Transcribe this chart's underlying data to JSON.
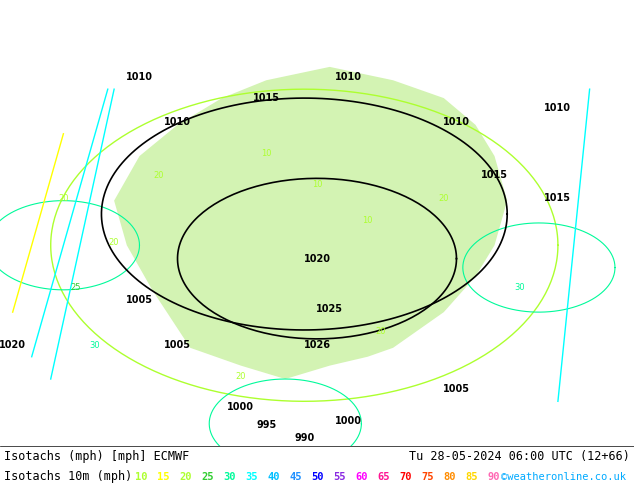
{
  "title_line1": "Isotachs (mph) [mph] ECMWF",
  "title_line1_right": "Tu 28-05-2024 06:00 UTC (12+66)",
  "title_line2_left": "Isotachs 10m (mph)",
  "title_line2_right": "©weatheronline.co.uk",
  "legend_values": [
    10,
    15,
    20,
    25,
    30,
    35,
    40,
    45,
    50,
    55,
    60,
    65,
    70,
    75,
    80,
    85,
    90
  ],
  "legend_colors": [
    "#adff2f",
    "#ffff00",
    "#adff2f",
    "#32cd32",
    "#00fa9a",
    "#00ffff",
    "#00bfff",
    "#1e90ff",
    "#0000ff",
    "#8a2be2",
    "#ff00ff",
    "#ff1493",
    "#ff0000",
    "#ff4500",
    "#ff8c00",
    "#ffd700",
    "#ffffff"
  ],
  "bg_color": "#ffffff",
  "map_bg": "#f0f0f0",
  "bottom_bar_color": "#000000",
  "font_size_label": 9,
  "font_size_legend": 8
}
